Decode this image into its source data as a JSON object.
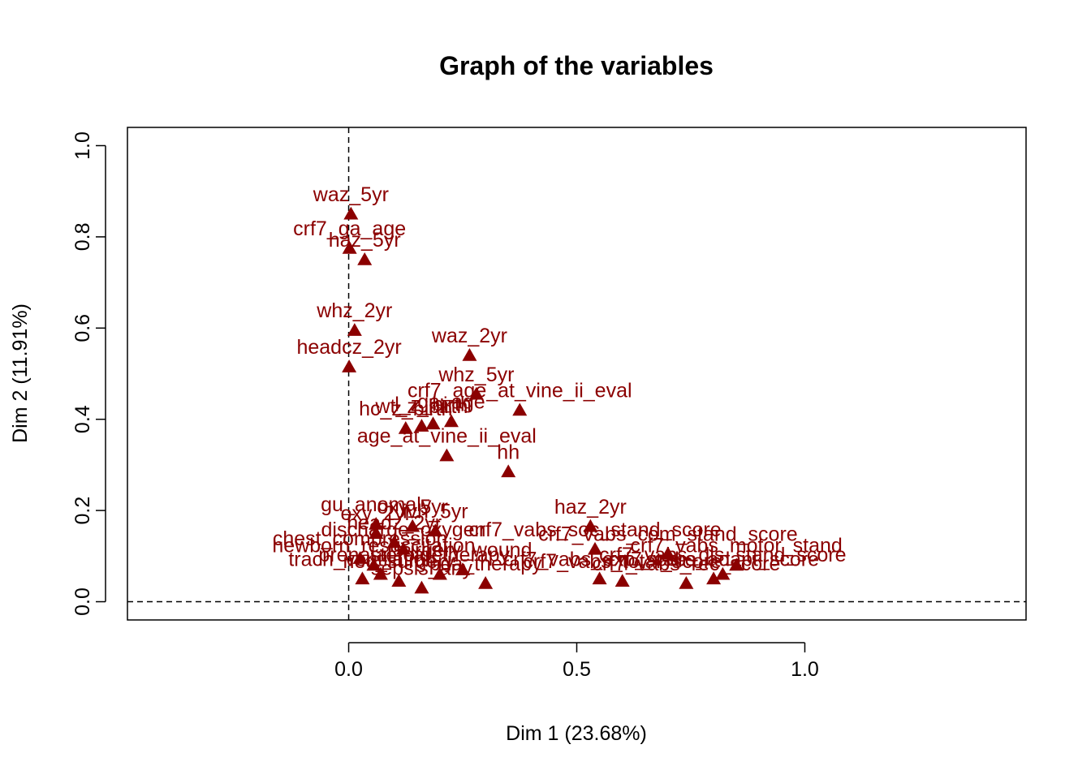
{
  "chart_data": {
    "type": "scatter",
    "title": "Graph of the variables",
    "xlabel": "Dim 1 (23.68%)",
    "ylabel": "Dim 2 (11.91%)",
    "xlim": [
      -0.485,
      1.485
    ],
    "ylim": [
      -0.04,
      1.04
    ],
    "xticks": [
      "0.0",
      "0.5",
      "1.0"
    ],
    "xtick_values": [
      0.0,
      0.5,
      1.0
    ],
    "yticks": [
      "0.0",
      "0.2",
      "0.4",
      "0.6",
      "0.8",
      "1.0"
    ],
    "ytick_values": [
      0.0,
      0.2,
      0.4,
      0.6,
      0.8,
      1.0
    ],
    "reference_lines": {
      "x": 0,
      "y": 0,
      "style": "dashed"
    },
    "marker": "triangle",
    "color": "#8B0000",
    "points": [
      {
        "x": 0.005,
        "y": 0.85,
        "label": "waz_5yr"
      },
      {
        "x": 0.002,
        "y": 0.775,
        "label": "crf7_ga_age"
      },
      {
        "x": 0.035,
        "y": 0.75,
        "label": "haz_5yr"
      },
      {
        "x": 0.013,
        "y": 0.595,
        "label": "whz_2yr"
      },
      {
        "x": 0.265,
        "y": 0.54,
        "label": "waz_2yr"
      },
      {
        "x": 0.001,
        "y": 0.515,
        "label": "headcz_2yr"
      },
      {
        "x": 0.28,
        "y": 0.455,
        "label": "whz_5yr"
      },
      {
        "x": 0.375,
        "y": 0.42,
        "label": "crf7_age_at_vine_ii_eval"
      },
      {
        "x": 0.125,
        "y": 0.38,
        "label": "hc_z_birth"
      },
      {
        "x": 0.16,
        "y": 0.385,
        "label": "wt_z_birth"
      },
      {
        "x": 0.185,
        "y": 0.39,
        "label": "l_z_birth"
      },
      {
        "x": 0.225,
        "y": 0.395,
        "label": "ga_age"
      },
      {
        "x": 0.215,
        "y": 0.32,
        "label": "age_at_vine_ii_eval"
      },
      {
        "x": 0.35,
        "y": 0.285,
        "label": "hh"
      },
      {
        "x": 0.53,
        "y": 0.165,
        "label": "haz_2yr"
      },
      {
        "x": 0.06,
        "y": 0.17,
        "label": "gu_anomaly"
      },
      {
        "x": 0.14,
        "y": 0.165,
        "label": "oxy_5yr"
      },
      {
        "x": 0.06,
        "y": 0.15,
        "label": "oxy_2yr"
      },
      {
        "x": 0.19,
        "y": 0.155,
        "label": "ivh_5yr"
      },
      {
        "x": 0.1,
        "y": 0.13,
        "label": "headz_2yr"
      },
      {
        "x": 0.12,
        "y": 0.115,
        "label": "discharge_oxygen"
      },
      {
        "x": 0.025,
        "y": 0.095,
        "label": "chest_compression"
      },
      {
        "x": 0.055,
        "y": 0.08,
        "label": "newborn_resuscitation"
      },
      {
        "x": 0.2,
        "y": 0.06,
        "label": "steroid_therapy"
      },
      {
        "x": 0.25,
        "y": 0.07,
        "label": "surgery_wound"
      },
      {
        "x": 0.07,
        "y": 0.06,
        "label": "prenatal_care"
      },
      {
        "x": 0.03,
        "y": 0.05,
        "label": "trach_ventilation"
      },
      {
        "x": 0.11,
        "y": 0.045,
        "label": "nec_surgery"
      },
      {
        "x": 0.3,
        "y": 0.04,
        "label": "pda_therapy"
      },
      {
        "x": 0.16,
        "y": 0.03,
        "label": "sepsis_any"
      },
      {
        "x": 0.54,
        "y": 0.115,
        "label": "crf7_vabs_soc_stand_score"
      },
      {
        "x": 0.7,
        "y": 0.105,
        "label": "crf7_vabs_com_stand_score"
      },
      {
        "x": 0.85,
        "y": 0.08,
        "label": "crf7_vabs_motor_stand"
      },
      {
        "x": 0.82,
        "y": 0.06,
        "label": "crf7_vabs_dls_stand_score"
      },
      {
        "x": 0.8,
        "y": 0.05,
        "label": "crf7_vabs_adapt_score"
      },
      {
        "x": 0.74,
        "y": 0.04,
        "label": "crf7_vabs_rec_score"
      },
      {
        "x": 0.55,
        "y": 0.05,
        "label": "crf7_vabs_exp_score"
      },
      {
        "x": 0.6,
        "y": 0.045,
        "label": "crf7_vabs_total_score"
      }
    ]
  }
}
